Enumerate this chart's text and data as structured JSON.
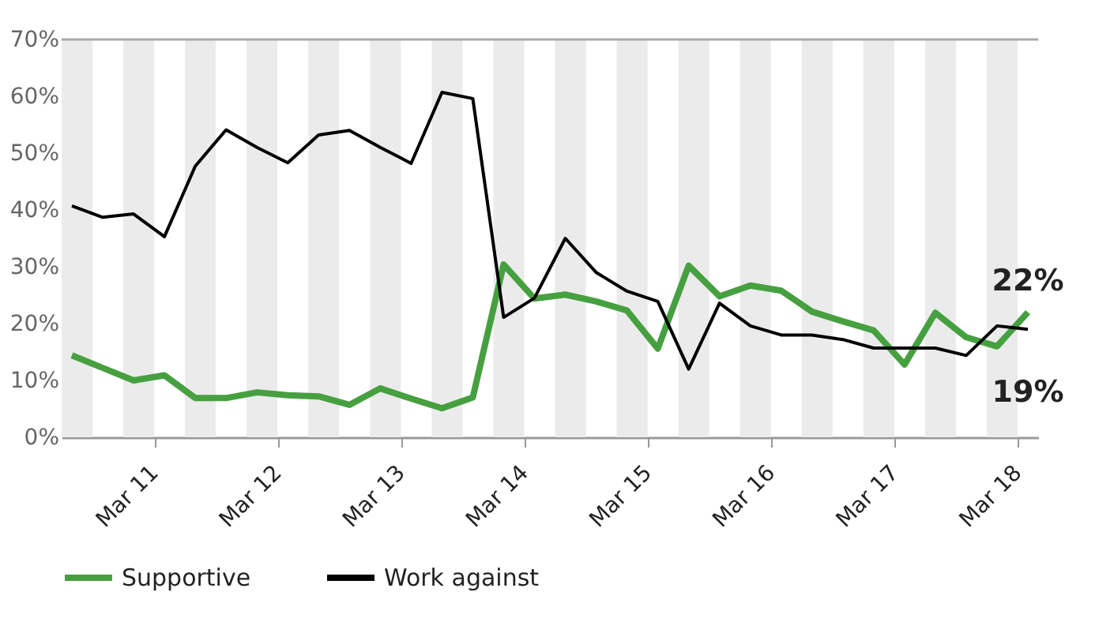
{
  "chart_data": {
    "type": "line",
    "x": [
      "--03-10T08:00",
      "--03-10T14:00",
      "--03-10T20:00",
      "--03-11T02:00",
      "--03-11T08:00",
      "--03-11T14:00",
      "--03-11T20:00",
      "--03-12T02:00",
      "--03-12T08:00",
      "--03-12T14:00",
      "--03-12T20:00",
      "--03-13T02:00",
      "--03-13T08:00",
      "--03-13T14:00",
      "--03-13T20:00",
      "--03-14T02:00",
      "--03-14T08:00",
      "--03-14T14:00",
      "--03-14T20:00",
      "--03-15T02:00",
      "--03-15T08:00",
      "--03-15T14:00",
      "--03-15T20:00",
      "--03-16T02:00",
      "--03-16T08:00",
      "--03-16T14:00",
      "--03-16T20:00",
      "--03-17T02:00",
      "--03-17T08:00",
      "--03-17T14:00",
      "--03-17T20:00",
      "--03-18T02:00"
    ],
    "series": [
      {
        "name": "Supportive",
        "color": "#46a040",
        "values": [
          14.4,
          12.2,
          10,
          10.9,
          6.9,
          6.9,
          7.9,
          7.4,
          7.2,
          5.7,
          8.6,
          6.8,
          5.1,
          7.0,
          30.4,
          24.4,
          25.1,
          23.9,
          22.3,
          15.6,
          30.2,
          24.8,
          26.7,
          25.8,
          22.1,
          20.4,
          18.8,
          12.8,
          21.9,
          17.6,
          16,
          22
        ]
      },
      {
        "name": "Work against",
        "color": "#000000",
        "values": [
          40.7,
          38.7,
          39.3,
          35.3,
          47.7,
          54.1,
          51,
          48.3,
          53.2,
          54,
          51,
          48.2,
          60.7,
          59.6,
          21.1,
          24.5,
          35,
          29,
          25.7,
          23.9,
          12,
          23.6,
          19.6,
          18,
          18,
          17.2,
          15.7,
          15.7,
          15.7,
          14.4,
          19.6,
          19
        ]
      }
    ],
    "xlim": [
      "--03-10T06:00",
      "--03-18T04:00"
    ],
    "xticks": [
      {
        "value": "--03-11",
        "label": "Mar 11"
      },
      {
        "value": "--03-12",
        "label": "Mar 12"
      },
      {
        "value": "--03-13",
        "label": "Mar 13"
      },
      {
        "value": "--03-14",
        "label": "Mar 14"
      },
      {
        "value": "--03-15",
        "label": "Mar 15"
      },
      {
        "value": "--03-16",
        "label": "Mar 16"
      },
      {
        "value": "--03-17",
        "label": "Mar 17"
      },
      {
        "value": "--03-18",
        "label": "Mar 18"
      }
    ],
    "ylim": [
      0,
      70
    ],
    "yticks": [
      {
        "value": 0,
        "label": "0%"
      },
      {
        "value": 10,
        "label": "10%"
      },
      {
        "value": 20,
        "label": "20%"
      },
      {
        "value": 30,
        "label": "30%"
      },
      {
        "value": 40,
        "label": "40%"
      },
      {
        "value": 50,
        "label": "50%"
      },
      {
        "value": 60,
        "label": "60%"
      },
      {
        "value": 70,
        "label": "70%"
      }
    ],
    "bands": [
      {
        "axis": "x",
        "from": "--03-10T06:00",
        "to": "--03-10T12:00",
        "color": "#ebebeb"
      },
      {
        "axis": "x",
        "from": "--03-10T18:00",
        "to": "--03-11T00:00",
        "color": "#ebebeb"
      },
      {
        "axis": "x",
        "from": "--03-11T06:00",
        "to": "--03-11T12:00",
        "color": "#ebebeb"
      },
      {
        "axis": "x",
        "from": "--03-11T18:00",
        "to": "--03-12T00:00",
        "color": "#ebebeb"
      },
      {
        "axis": "x",
        "from": "--03-12T06:00",
        "to": "--03-12T12:00",
        "color": "#ebebeb"
      },
      {
        "axis": "x",
        "from": "--03-12T18:00",
        "to": "--03-13T00:00",
        "color": "#ebebeb"
      },
      {
        "axis": "x",
        "from": "--03-13T06:00",
        "to": "--03-13T12:00",
        "color": "#ebebeb"
      },
      {
        "axis": "x",
        "from": "--03-13T18:00",
        "to": "--03-14T00:00",
        "color": "#ebebeb"
      },
      {
        "axis": "x",
        "from": "--03-14T06:00",
        "to": "--03-14T12:00",
        "color": "#ebebeb"
      },
      {
        "axis": "x",
        "from": "--03-14T18:00",
        "to": "--03-15T00:00",
        "color": "#ebebeb"
      },
      {
        "axis": "x",
        "from": "--03-15T06:00",
        "to": "--03-15T12:00",
        "color": "#ebebeb"
      },
      {
        "axis": "x",
        "from": "--03-15T18:00",
        "to": "--03-16T00:00",
        "color": "#ebebeb"
      },
      {
        "axis": "x",
        "from": "--03-16T06:00",
        "to": "--03-16T12:00",
        "color": "#ebebeb"
      },
      {
        "axis": "x",
        "from": "--03-16T18:00",
        "to": "--03-17T00:00",
        "color": "#ebebeb"
      },
      {
        "axis": "x",
        "from": "--03-17T06:00",
        "to": "--03-17T12:00",
        "color": "#ebebeb"
      },
      {
        "axis": "x",
        "from": "--03-17T18:00",
        "to": "--03-18T00:00",
        "color": "#ebebeb"
      }
    ],
    "annotations": [
      {
        "text": "22%",
        "x": "--03-18T02:00",
        "y": 22
      },
      {
        "text": "19%",
        "x": "--03-18T02:00",
        "y": 19
      }
    ],
    "grid": false,
    "legend": "bottom",
    "line_style": "solid",
    "marker": "none"
  }
}
